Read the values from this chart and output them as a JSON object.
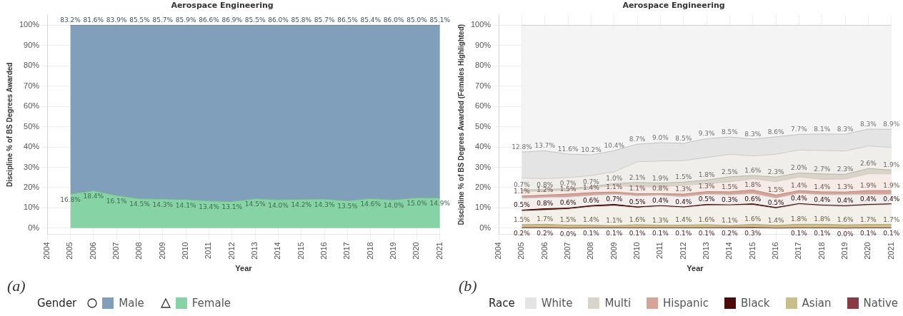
{
  "chart_data": [
    {
      "type": "area",
      "stacked": true,
      "title": "Aerospace Engineering",
      "xlabel": "Year",
      "ylabel": "Discipline % of BS Degrees Awarded",
      "legend_title": "Gender",
      "legend": "bottom left",
      "grid": true,
      "annotations": [
        "(a)"
      ],
      "x": [
        2005,
        2006,
        2007,
        2008,
        2009,
        2010,
        2011,
        2012,
        2013,
        2014,
        2015,
        2016,
        2017,
        2018,
        2019,
        2020,
        2021
      ],
      "xlim": [
        2004,
        2021
      ],
      "xticks": [
        2004,
        2005,
        2006,
        2007,
        2008,
        2009,
        2010,
        2011,
        2012,
        2013,
        2014,
        2015,
        2016,
        2017,
        2018,
        2019,
        2020,
        2021
      ],
      "ylim": [
        -3,
        105
      ],
      "yticks": [
        {
          "value": 0,
          "label": "0%"
        },
        {
          "value": 10,
          "label": "10%"
        },
        {
          "value": 20,
          "label": "20%"
        },
        {
          "value": 30,
          "label": "30%"
        },
        {
          "value": 40,
          "label": "40%"
        },
        {
          "value": 50,
          "label": "50%"
        },
        {
          "value": 60,
          "label": "60%"
        },
        {
          "value": 70,
          "label": "70%"
        },
        {
          "value": 80,
          "label": "80%"
        },
        {
          "value": 90,
          "label": "90%"
        },
        {
          "value": 100,
          "label": "100%"
        }
      ],
      "series": [
        {
          "name": "Female",
          "color": "#86d4a5",
          "values": [
            16.8,
            18.4,
            16.1,
            14.5,
            14.3,
            14.1,
            13.4,
            13.1,
            14.5,
            14.0,
            14.2,
            14.3,
            13.5,
            14.6,
            14.0,
            15.0,
            14.9
          ],
          "value_labels": [
            "16.8%",
            "18.4%",
            "16.1%",
            "14.5%",
            "14.3%",
            "14.1%",
            "13.4%",
            "13.1%",
            "14.5%",
            "14.0%",
            "14.2%",
            "14.3%",
            "13.5%",
            "14.6%",
            "14.0%",
            "15.0%",
            "14.9%"
          ]
        },
        {
          "name": "Male",
          "color": "#809fba",
          "values": [
            83.2,
            81.6,
            83.9,
            85.5,
            85.7,
            85.9,
            86.6,
            86.9,
            85.5,
            86.0,
            85.8,
            85.7,
            86.5,
            85.4,
            86.0,
            85.0,
            85.1
          ],
          "value_labels": [
            "83.2%",
            "81.6%",
            "83.9%",
            "85.5%",
            "85.7%",
            "85.9%",
            "86.6%",
            "86.9%",
            "85.5%",
            "86.0%",
            "85.8%",
            "85.7%",
            "86.5%",
            "85.4%",
            "86.0%",
            "85.0%",
            "85.1%"
          ]
        }
      ]
    },
    {
      "type": "area",
      "stacked": true,
      "title": "Aerospace Engineering",
      "xlabel": "Year",
      "ylabel": "Discipline % of BS Degrees Awarded (Females Highlighted)",
      "legend_title": "Race",
      "legend": "bottom left",
      "grid": true,
      "annotations": [
        "(b)"
      ],
      "x": [
        2005,
        2006,
        2007,
        2008,
        2009,
        2010,
        2011,
        2012,
        2013,
        2014,
        2015,
        2016,
        2017,
        2018,
        2019,
        2020,
        2021
      ],
      "xlim": [
        2004,
        2021
      ],
      "xticks": [
        2004,
        2005,
        2006,
        2007,
        2008,
        2009,
        2010,
        2011,
        2012,
        2013,
        2014,
        2015,
        2016,
        2017,
        2018,
        2019,
        2020,
        2021
      ],
      "ylim": [
        -3,
        105
      ],
      "yticks": [
        {
          "value": 0,
          "label": "0%"
        },
        {
          "value": 10,
          "label": "10%"
        },
        {
          "value": 20,
          "label": "20%"
        },
        {
          "value": 30,
          "label": "30%"
        },
        {
          "value": 40,
          "label": "40%"
        },
        {
          "value": 50,
          "label": "50%"
        },
        {
          "value": 60,
          "label": "60%"
        },
        {
          "value": 70,
          "label": "70%"
        },
        {
          "value": 80,
          "label": "80%"
        },
        {
          "value": 90,
          "label": "90%"
        },
        {
          "value": 100,
          "label": "100%"
        }
      ],
      "series": [
        {
          "name": "Native",
          "color": "#8b3a45",
          "values": [
            0.2,
            0.2,
            0.0,
            0.1,
            0.1,
            0.1,
            0.1,
            0.1,
            0.1,
            0.2,
            0.3,
            0.0,
            0.1,
            0.1,
            0.0,
            0.1,
            0.1
          ],
          "value_labels": [
            "0.2%",
            "0.2%",
            "0.0%",
            "0.1%",
            "0.1%",
            "0.1%",
            "0.1%",
            "0.1%",
            "0.1%",
            "0.2%",
            "0.3%",
            null,
            "0.1%",
            "0.1%",
            "0.0%",
            "0.1%",
            "0.1%"
          ]
        },
        {
          "name": "Asian",
          "color": "#c9bd88",
          "values": [
            1.5,
            1.7,
            1.5,
            1.4,
            1.1,
            1.6,
            1.3,
            1.4,
            1.6,
            1.1,
            1.6,
            1.4,
            1.8,
            1.8,
            1.6,
            1.7,
            1.7
          ],
          "value_labels": [
            "1.5%",
            "1.7%",
            "1.5%",
            "1.4%",
            "1.1%",
            "1.6%",
            "1.3%",
            "1.4%",
            "1.6%",
            "1.1%",
            "1.6%",
            "1.4%",
            "1.8%",
            "1.8%",
            "1.6%",
            "1.7%",
            "1.7%"
          ]
        },
        {
          "color": "#f2f0e8",
          "values": [
            6.7,
            6.9,
            7.8,
            9.0,
            9.8,
            8.3,
            9.3,
            8.6,
            9.5,
            9.9,
            9.5,
            8.3,
            9.8,
            9.1,
            9.1,
            9.5,
            9.8
          ]
        },
        {
          "name": "Black",
          "color": "#4d0a0a",
          "values": [
            0.5,
            0.8,
            0.6,
            0.6,
            0.7,
            0.5,
            0.4,
            0.4,
            0.5,
            0.3,
            0.6,
            0.5,
            0.4,
            0.4,
            0.4,
            0.4,
            0.4
          ],
          "value_labels": [
            "0.5%",
            "0.8%",
            "0.6%",
            "0.6%",
            "0.7%",
            "0.5%",
            "0.4%",
            "0.4%",
            "0.5%",
            "0.3%",
            "0.6%",
            "0.5%",
            "0.4%",
            "0.4%",
            "0.4%",
            "0.4%",
            "0.4%"
          ]
        },
        {
          "color": "#f3eeee",
          "values": [
            5.8,
            5.5,
            5.4,
            5.0,
            5.0,
            5.4,
            5.1,
            5.0,
            5.0,
            4.9,
            5.0,
            4.6,
            5.0,
            5.1,
            5.4,
            4.9,
            4.6
          ]
        },
        {
          "name": "Hispanic",
          "color": "#d7a396",
          "values": [
            1.1,
            1.2,
            1.5,
            1.4,
            1.1,
            1.1,
            0.8,
            1.3,
            1.3,
            1.5,
            1.8,
            1.5,
            1.4,
            1.4,
            1.3,
            1.9,
            1.9
          ],
          "value_labels": [
            "1.1%",
            "1.2%",
            "1.5%",
            "1.4%",
            "1.1%",
            "1.1%",
            "0.8%",
            "1.3%",
            "1.3%",
            "1.5%",
            "1.8%",
            "1.5%",
            "1.4%",
            "1.4%",
            "1.3%",
            "1.9%",
            "1.9%"
          ]
        },
        {
          "color": "#f7ebe8",
          "values": [
            2.3,
            1.9,
            2.0,
            2.2,
            3.2,
            3.4,
            3.3,
            4.4,
            3.9,
            4.9,
            5.5,
            6.6,
            6.7,
            6.1,
            6.4,
            8.3,
            8.2
          ]
        },
        {
          "name": "Multi",
          "color": "#d8d4c8",
          "values": [
            0.7,
            0.8,
            0.7,
            0.7,
            1.0,
            2.1,
            1.9,
            1.5,
            1.8,
            2.5,
            1.6,
            2.3,
            2.0,
            2.7,
            2.3,
            2.6,
            1.9
          ],
          "value_labels": [
            "0.7%",
            "0.8%",
            "0.7%",
            "0.7%",
            "1.0%",
            "2.1%",
            "1.9%",
            "1.5%",
            "1.8%",
            "2.5%",
            "1.6%",
            "2.3%",
            "2.0%",
            "2.7%",
            "2.3%",
            "2.6%",
            "1.9%"
          ]
        },
        {
          "color": "#efeeeb",
          "values": [
            5.9,
            5.4,
            5.4,
            5.5,
            5.8,
            10.2,
            10.9,
            10.6,
            11.1,
            11.1,
            9.7,
            11.2,
            11.3,
            11.6,
            11.5,
            11.1,
            11.2
          ]
        },
        {
          "name": "White",
          "color": "#e4e4e4",
          "values": [
            12.8,
            13.7,
            11.6,
            10.2,
            10.4,
            8.7,
            9.0,
            8.5,
            9.3,
            8.5,
            8.3,
            8.6,
            7.7,
            8.1,
            8.3,
            8.3,
            8.9
          ],
          "value_labels": [
            "12.8%",
            "13.7%",
            "11.6%",
            "10.2%",
            "10.4%",
            "8.7%",
            "9.0%",
            "8.5%",
            "9.3%",
            "8.5%",
            "8.3%",
            "8.6%",
            "7.7%",
            "8.1%",
            "8.3%",
            "8.3%",
            "8.9%"
          ]
        },
        {
          "color": "#f4f4f4",
          "values": [
            62.5,
            61.9,
            63.5,
            63.9,
            61.8,
            58.6,
            57.9,
            58.2,
            55.9,
            55.1,
            56.1,
            55.0,
            53.8,
            53.6,
            53.7,
            51.2,
            51.3
          ]
        }
      ]
    }
  ]
}
